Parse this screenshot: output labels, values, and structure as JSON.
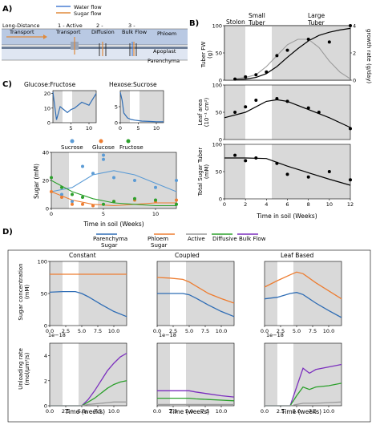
{
  "panel_labels": {
    "a": "A)",
    "b": "B)",
    "c": "C)",
    "d": "D)"
  },
  "panel_a": {
    "legend": {
      "water": "Water flow",
      "sugar": "Sugar flow"
    },
    "long_distance": "Long-Distance\nTransport",
    "step1": "1 - Active\nTransport",
    "step2": "2 -\nDiffusion",
    "step3": "3 -\nBulk Flow",
    "phloem": "Phloem",
    "apoplast": "Apoplast",
    "parenchyma": "Parenchyma",
    "colors": {
      "water": "#4a7fd4",
      "sugar": "#e08a3c",
      "phloem_band": "#b9c9e3",
      "apoplast_band": "#6e7f99"
    }
  },
  "panel_b": {
    "stage_labels": [
      "Stolon",
      "Small\nTuber",
      "Large\nTuber"
    ],
    "xlabel": "Time in soil (Weeks)",
    "top_ylabel": "Tuber FW\n(g)",
    "top_ylabel_right": "growth rate (g/day)",
    "mid_ylabel": "Leaf area\n(10⁻¹ cm²)",
    "bot_ylabel": "Total Sugar Tuber\n(mM)",
    "shaded_weeks": [
      [
        0,
        2
      ],
      [
        4.5,
        12
      ]
    ],
    "line_color": "#000000",
    "rate_color": "#9a9a9a"
  },
  "panel_c": {
    "title_left": "Glucose:Fructose",
    "title_right": "Hexose:Sucrose",
    "legend": [
      "Sucrose",
      "Glucose",
      "Fructose"
    ],
    "ylabel": "Sugar (mM)",
    "xlabel": "Time in soil (Weeks)",
    "colors": {
      "sucrose": "#5b9bd5",
      "glucose": "#ed7d31",
      "fructose": "#2ca02c"
    }
  },
  "panel_d": {
    "legend": [
      "Parenchyma\nSugar",
      "Phloem\nSugar",
      "Active",
      "Diffusive",
      "Bulk Flow"
    ],
    "legend_colors": [
      "#2f6db5",
      "#ed7d31",
      "#9a9a9a",
      "#2ca02c",
      "#7b2fbe"
    ],
    "columns": [
      "Constant",
      "Coupled",
      "Leaf Based"
    ],
    "top_ylabel": "Sugar concentration\n(mM)",
    "bot_ylabel": "Unloading rate\n(mol/μm²/s)",
    "multiplier": "1e−18",
    "xlabel": "Time (weeks)"
  },
  "chart_data": [
    {
      "type": "line",
      "title": "",
      "xlabel": "Time in soil (Weeks)",
      "ylabel": "Tuber FW (g)",
      "x": [
        1,
        2,
        3,
        4,
        5,
        6,
        7,
        8,
        9,
        10,
        11,
        12
      ],
      "series": [
        {
          "values": [
            1,
            2,
            5,
            12,
            25,
            42,
            58,
            72,
            82,
            88,
            92,
            95
          ]
        },
        {
          "values": [
            0.5,
            1,
            2,
            5,
            9,
            13,
            15,
            15,
            12,
            7,
            3,
            0.5
          ]
        }
      ],
      "points": {
        "x": [
          1,
          2,
          3,
          4,
          5,
          6,
          8,
          10,
          12
        ],
        "y": [
          2,
          6,
          10,
          15,
          45,
          55,
          75,
          70,
          100
        ]
      },
      "ylim": [
        0,
        100
      ],
      "yticks": [
        0,
        50,
        100
      ],
      "y2label": "growth rate (g/day)",
      "y2lim": [
        0,
        4
      ],
      "y2ticks": [
        0,
        2,
        4
      ]
    },
    {
      "type": "scatter",
      "xlabel": "Time in soil (Weeks)",
      "ylabel": "Leaf area (10⁻¹ cm²)",
      "x": [
        1,
        2,
        3,
        5,
        6,
        8,
        9,
        12
      ],
      "y": [
        50,
        60,
        72,
        75,
        70,
        58,
        50,
        20
      ],
      "fit": {
        "x": [
          0,
          2,
          4,
          5,
          6,
          8,
          10,
          12
        ],
        "y": [
          40,
          50,
          70,
          73,
          70,
          55,
          40,
          22
        ]
      },
      "ylim": [
        0,
        100
      ],
      "yticks": [
        0,
        50,
        100
      ]
    },
    {
      "type": "scatter",
      "xlabel": "Time in soil (Weeks)",
      "ylabel": "Total Sugar Tuber (mM)",
      "x": [
        1,
        2,
        3,
        5,
        6,
        8,
        10,
        12
      ],
      "y": [
        80,
        70,
        75,
        65,
        45,
        40,
        50,
        35
      ],
      "fit": {
        "x": [
          0,
          2,
          4,
          6,
          8,
          10,
          12
        ],
        "y": [
          75,
          75,
          74,
          60,
          48,
          36,
          25
        ]
      },
      "ylim": [
        0,
        100
      ],
      "yticks": [
        0,
        50,
        100
      ],
      "xticks": [
        0,
        2,
        4,
        6,
        8,
        10,
        12
      ]
    },
    {
      "type": "line",
      "title": "Glucose:Fructose",
      "x": [
        0,
        1,
        2,
        3,
        4,
        5,
        6,
        8,
        10,
        12
      ],
      "series": [
        {
          "values": [
            21,
            2,
            11,
            9,
            7,
            9,
            10,
            14,
            12,
            20
          ]
        }
      ],
      "ylim": [
        0,
        22
      ],
      "yticks": [
        0,
        10,
        20
      ],
      "xticks": [
        5,
        10
      ]
    },
    {
      "type": "line",
      "title": "Hexose:Sucrose",
      "x": [
        0,
        0.5,
        1,
        2,
        3,
        4,
        6,
        8,
        10,
        12
      ],
      "series": [
        {
          "values": [
            9.5,
            7,
            3,
            1.5,
            1,
            0.8,
            0.5,
            0.4,
            0.3,
            0.3
          ]
        }
      ],
      "ylim": [
        0,
        10
      ],
      "yticks": [
        0,
        5
      ],
      "xticks": [
        0,
        5,
        10
      ]
    },
    {
      "type": "scatter",
      "xlabel": "Time in soil (Weeks)",
      "ylabel": "Sugar (mM)",
      "series": [
        {
          "name": "Sucrose",
          "x": [
            1,
            2,
            3,
            4,
            5,
            5,
            6,
            8,
            10,
            12
          ],
          "y": [
            10,
            5,
            30,
            25,
            38,
            35,
            22,
            20,
            15,
            20
          ]
        },
        {
          "name": "Glucose",
          "x": [
            0,
            1,
            2,
            3,
            4,
            6,
            8,
            10,
            12
          ],
          "y": [
            12,
            8,
            3,
            3,
            2,
            5,
            6,
            5,
            6
          ]
        },
        {
          "name": "Fructose",
          "x": [
            0,
            1,
            2,
            3,
            5,
            6,
            8,
            10,
            12
          ],
          "y": [
            22,
            15,
            10,
            8,
            3,
            5,
            7,
            6,
            3
          ]
        }
      ],
      "fits": [
        {
          "name": "Sucrose",
          "x": [
            0,
            2,
            4,
            6,
            8,
            10,
            12
          ],
          "y": [
            12,
            15,
            24,
            27,
            24,
            18,
            12
          ]
        },
        {
          "name": "Glucose",
          "x": [
            0,
            2,
            4,
            6,
            8,
            10,
            12
          ],
          "y": [
            12,
            6,
            3,
            2,
            3,
            4,
            4
          ]
        },
        {
          "name": "Fructose",
          "x": [
            0,
            2,
            4,
            6,
            8,
            10,
            12
          ],
          "y": [
            20,
            12,
            7,
            4,
            3,
            2,
            2
          ]
        }
      ],
      "ylim": [
        0,
        40
      ],
      "yticks": [
        0,
        20,
        40
      ],
      "xticks": [
        0,
        5,
        10
      ]
    },
    {
      "type": "line",
      "title": "Constant",
      "ylabel": "Sugar concentration (mM)",
      "x": [
        0,
        2,
        4,
        5,
        6,
        8,
        10,
        12
      ],
      "series": [
        {
          "name": "Phloem Sugar",
          "values": [
            80,
            80,
            80,
            80,
            80,
            80,
            80,
            80
          ]
        },
        {
          "name": "Parenchyma Sugar",
          "values": [
            52,
            53,
            53,
            50,
            45,
            33,
            22,
            14
          ]
        }
      ],
      "ylim": [
        0,
        100
      ],
      "yticks": [
        0,
        50,
        100
      ],
      "xticks": [
        0.0,
        2.5,
        5.0,
        7.5,
        10.0
      ]
    },
    {
      "type": "line",
      "title": "Coupled",
      "x": [
        0,
        2,
        4,
        5,
        6,
        8,
        10,
        12
      ],
      "series": [
        {
          "name": "Phloem Sugar",
          "values": [
            75,
            74,
            72,
            68,
            62,
            50,
            42,
            35
          ]
        },
        {
          "name": "Parenchyma Sugar",
          "values": [
            50,
            50,
            50,
            48,
            43,
            32,
            22,
            14
          ]
        }
      ],
      "ylim": [
        0,
        100
      ],
      "xticks": [
        0.0,
        2.5,
        5.0,
        7.5,
        10.0
      ]
    },
    {
      "type": "line",
      "title": "Leaf Based",
      "x": [
        0,
        2,
        4,
        5,
        6,
        8,
        10,
        12
      ],
      "series": [
        {
          "name": "Phloem Sugar",
          "values": [
            72,
            84,
            95,
            100,
            97,
            80,
            65,
            50
          ]
        },
        {
          "name": "Parenchyma Sugar",
          "values": [
            50,
            53,
            60,
            62,
            58,
            42,
            28,
            15
          ]
        }
      ],
      "ylim": [
        0,
        120
      ],
      "xticks": [
        0.0,
        2.5,
        5.0,
        7.5,
        10.0
      ]
    },
    {
      "type": "line",
      "ylabel": "Unloading rate (mol/μm²/s)",
      "xlabel": "Time (weeks)",
      "x": [
        0,
        2,
        4,
        5,
        6,
        7,
        8,
        9,
        10,
        11,
        12
      ],
      "series": [
        {
          "name": "Bulk Flow",
          "values": [
            0,
            0,
            0,
            0,
            0.5,
            1.2,
            2.0,
            2.8,
            3.4,
            3.9,
            4.2
          ]
        },
        {
          "name": "Diffusive",
          "values": [
            0,
            0,
            0,
            0,
            0.3,
            0.6,
            1.0,
            1.4,
            1.7,
            1.9,
            2.0
          ]
        },
        {
          "name": "Active",
          "values": [
            0,
            0,
            0,
            0,
            0.1,
            0.15,
            0.2,
            0.25,
            0.3,
            0.3,
            0.3
          ]
        }
      ],
      "ylim": [
        0,
        5
      ],
      "yticks": [
        0,
        2,
        4
      ],
      "xticks": [
        0.0,
        2.5,
        5.0,
        7.5,
        10.0
      ]
    },
    {
      "type": "line",
      "xlabel": "Time (weeks)",
      "x": [
        0,
        2,
        4,
        5,
        6,
        8,
        10,
        12
      ],
      "series": [
        {
          "name": "Bulk Flow",
          "values": [
            1.2,
            1.2,
            1.2,
            1.2,
            1.1,
            0.95,
            0.8,
            0.7
          ]
        },
        {
          "name": "Diffusive",
          "values": [
            0.6,
            0.6,
            0.6,
            0.6,
            0.55,
            0.5,
            0.45,
            0.4
          ]
        },
        {
          "name": "Active",
          "values": [
            0.1,
            0.1,
            0.1,
            0.1,
            0.1,
            0.1,
            0.1,
            0.1
          ]
        }
      ],
      "ylim": [
        0,
        5
      ],
      "xticks": [
        0.0,
        2.5,
        5.0,
        7.5,
        10.0
      ]
    },
    {
      "type": "line",
      "xlabel": "Time (weeks)",
      "x": [
        0,
        2,
        4,
        5,
        6,
        7,
        8,
        10,
        12
      ],
      "series": [
        {
          "name": "Bulk Flow",
          "values": [
            0,
            0,
            0,
            1.5,
            3.0,
            2.6,
            2.9,
            3.1,
            3.3
          ]
        },
        {
          "name": "Diffusive",
          "values": [
            0,
            0,
            0,
            0.8,
            1.5,
            1.3,
            1.5,
            1.6,
            1.8
          ]
        },
        {
          "name": "Active",
          "values": [
            0,
            0,
            0,
            0.1,
            0.2,
            0.2,
            0.2,
            0.25,
            0.3
          ]
        }
      ],
      "ylim": [
        0,
        5
      ],
      "xticks": [
        0.0,
        2.5,
        5.0,
        7.5,
        10.0
      ]
    }
  ]
}
